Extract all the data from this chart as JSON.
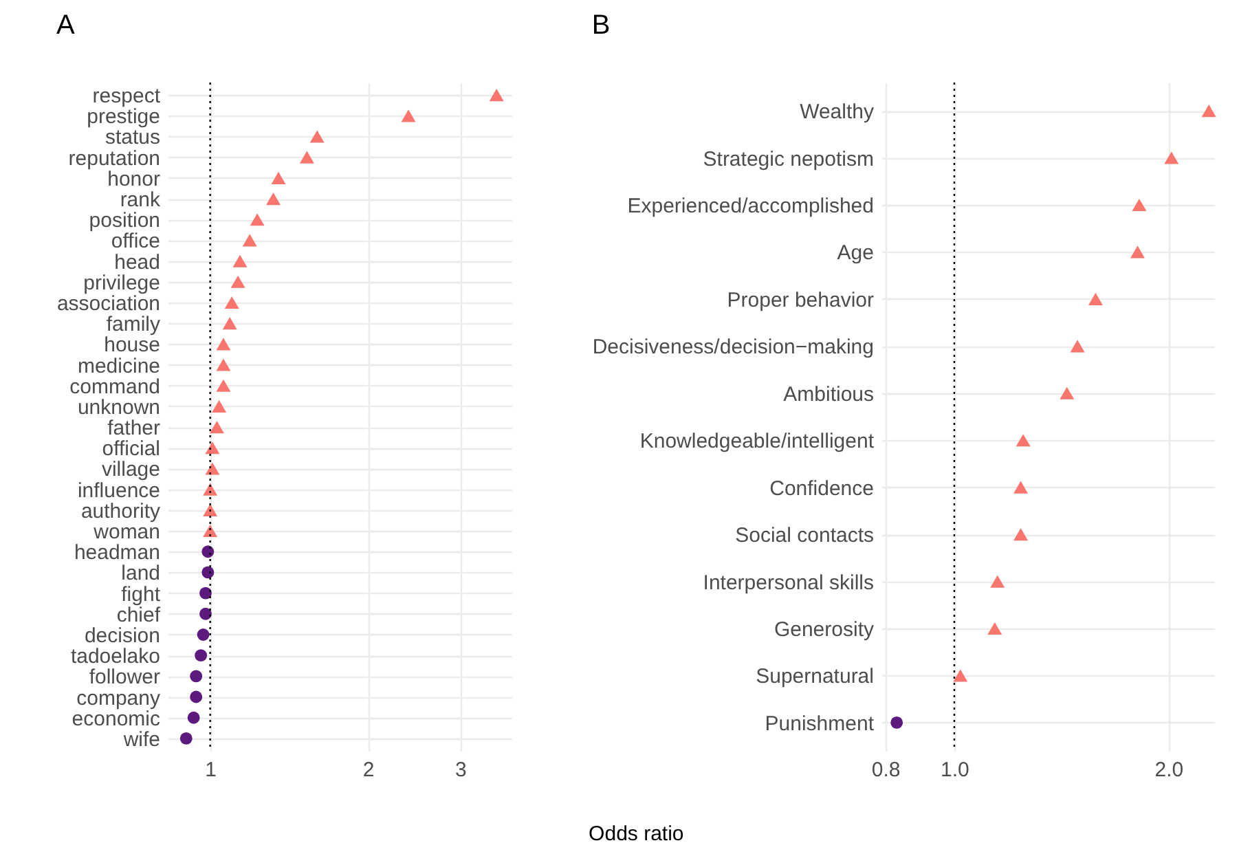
{
  "chart_data": [
    {
      "type": "scatter",
      "orientation": "horizontal",
      "title": "A",
      "xlabel": "Odds ratio",
      "log": "x",
      "grid": true,
      "xlim": [
        0.83,
        3.76
      ],
      "xticks": [
        1,
        2,
        3
      ],
      "categories": [
        "respect",
        "prestige",
        "status",
        "reputation",
        "honor",
        "rank",
        "position",
        "office",
        "head",
        "privilege",
        "association",
        "family",
        "house",
        "medicine",
        "command",
        "unknown",
        "father",
        "official",
        "village",
        "influence",
        "authority",
        "woman",
        "headman",
        "land",
        "fight",
        "chief",
        "decision",
        "tadoelako",
        "follower",
        "company",
        "economic",
        "wife"
      ],
      "series": [
        {
          "color": "#f8766d",
          "marker": "triangle",
          "values": [
            3.52,
            2.39,
            1.6,
            1.53,
            1.35,
            1.32,
            1.23,
            1.19,
            1.14,
            1.13,
            1.1,
            1.09,
            1.06,
            1.06,
            1.06,
            1.04,
            1.03,
            1.01,
            1.01,
            1.0,
            1.0,
            1.0,
            null,
            null,
            null,
            null,
            null,
            null,
            null,
            null,
            null,
            null
          ]
        },
        {
          "color": "#5c1a7e",
          "marker": "circle",
          "values": [
            null,
            null,
            null,
            null,
            null,
            null,
            null,
            null,
            null,
            null,
            null,
            null,
            null,
            null,
            null,
            null,
            null,
            null,
            null,
            null,
            null,
            null,
            0.99,
            0.99,
            0.98,
            0.98,
            0.97,
            0.96,
            0.94,
            0.94,
            0.93,
            0.9
          ]
        }
      ],
      "ref_lines": [
        {
          "axis": "x",
          "value": 1,
          "color": "#000000",
          "line_style": "dotted"
        }
      ]
    },
    {
      "type": "scatter",
      "orientation": "horizontal",
      "title": "B",
      "log": "x",
      "grid": true,
      "xlim": [
        0.79,
        2.32
      ],
      "xticks": [
        0.8,
        {
          "value": 1,
          "label": "1.0"
        },
        {
          "value": 2,
          "label": "2.0"
        }
      ],
      "categories": [
        "Wealthy",
        "Strategic nepotism",
        "Experienced/accomplished",
        "Age",
        "Proper behavior",
        "Decisiveness/decision−making",
        "Ambitious",
        "Knowledgeable/intelligent",
        "Confidence",
        "Social contacts",
        "Interpersonal skills",
        "Generosity",
        "Supernatural",
        "Punishment"
      ],
      "series": [
        {
          "color": "#f8766d",
          "marker": "triangle",
          "values": [
            2.28,
            2.02,
            1.82,
            1.81,
            1.58,
            1.49,
            1.44,
            1.25,
            1.24,
            1.24,
            1.15,
            1.14,
            1.02,
            null
          ]
        },
        {
          "color": "#5c1a7e",
          "marker": "circle",
          "values": [
            null,
            null,
            null,
            null,
            null,
            null,
            null,
            null,
            null,
            null,
            null,
            null,
            null,
            0.83
          ]
        }
      ],
      "ref_lines": [
        {
          "axis": "x",
          "value": 1,
          "color": "#000000",
          "line_style": "dotted"
        }
      ]
    }
  ]
}
